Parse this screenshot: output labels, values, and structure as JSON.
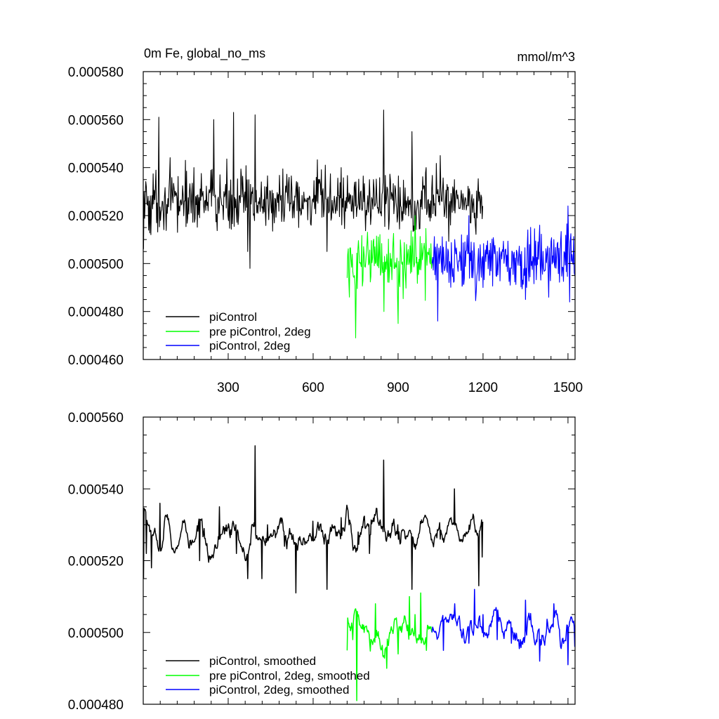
{
  "chart_data": [
    {
      "type": "line",
      "title": "0m Fe, global_no_ms",
      "units": "mmol/m^3",
      "xlim": [
        0,
        1525
      ],
      "ylim": [
        0.00046,
        0.00058
      ],
      "x_ticks": [
        "300",
        "600",
        "900",
        "1200",
        "1500"
      ],
      "y_ticks": [
        "0.000460",
        "0.000480",
        "0.000500",
        "0.000520",
        "0.000540",
        "0.000560",
        "0.000580"
      ],
      "legend_position": "bottom-left",
      "series": [
        {
          "name": "piControl",
          "color": "#000000",
          "x_range": [
            1,
            1200
          ],
          "baseline": 0.000526,
          "points": [
            [
              1,
              0.000506
            ],
            [
              14,
              0.000525
            ],
            [
              28,
              0.000512
            ],
            [
              55,
              0.000561
            ],
            [
              100,
              0.000527
            ],
            [
              180,
              0.00054
            ],
            [
              230,
              0.000522
            ],
            [
              250,
              0.00056
            ],
            [
              300,
              0.00052
            ],
            [
              320,
              0.000563
            ],
            [
              370,
              0.000505
            ],
            [
              378,
              0.000498
            ],
            [
              395,
              0.000562
            ],
            [
              450,
              0.00053
            ],
            [
              500,
              0.00052
            ],
            [
              550,
              0.000515
            ],
            [
              600,
              0.000527
            ],
            [
              650,
              0.000505
            ],
            [
              700,
              0.00054
            ],
            [
              760,
              0.000525
            ],
            [
              800,
              0.000535
            ],
            [
              850,
              0.000564
            ],
            [
              900,
              0.00052
            ],
            [
              950,
              0.000555
            ],
            [
              1000,
              0.00054
            ],
            [
              1050,
              0.000545
            ],
            [
              1100,
              0.000535
            ],
            [
              1150,
              0.000524
            ],
            [
              1180,
              0.000519
            ],
            [
              1200,
              0.000524
            ]
          ]
        },
        {
          "name": "pre piControl, 2deg",
          "color": "#00ff00",
          "x_range": [
            720,
            1020
          ],
          "baseline": 0.000501,
          "points": [
            [
              720,
              0.000494
            ],
            [
              728,
              0.000486
            ],
            [
              750,
              0.000469
            ],
            [
              780,
              0.000504
            ],
            [
              820,
              0.0005
            ],
            [
              850,
              0.00048
            ],
            [
              900,
              0.000475
            ],
            [
              930,
              0.000508
            ],
            [
              960,
              0.00052
            ],
            [
              990,
              0.000506
            ],
            [
              1020,
              0.0005
            ]
          ]
        },
        {
          "name": "piControl, 2deg",
          "color": "#0000ff",
          "x_range": [
            1020,
            1525
          ],
          "baseline": 0.000501,
          "points": [
            [
              1020,
              0.0005
            ],
            [
              1040,
              0.000476
            ],
            [
              1100,
              0.00051
            ],
            [
              1150,
              0.00052
            ],
            [
              1200,
              0.00049
            ],
            [
              1250,
              0.000505
            ],
            [
              1300,
              0.000498
            ],
            [
              1350,
              0.000485
            ],
            [
              1400,
              0.000516
            ],
            [
              1450,
              0.00051
            ],
            [
              1500,
              0.000524
            ],
            [
              1525,
              0.000495
            ]
          ]
        }
      ]
    },
    {
      "type": "line",
      "xlim": [
        0,
        1525
      ],
      "ylim": [
        0.00048,
        0.00056
      ],
      "y_ticks": [
        "0.000480",
        "0.000500",
        "0.000520",
        "0.000540",
        "0.000560"
      ],
      "legend_position": "bottom-left",
      "series": [
        {
          "name": "piControl, smoothed",
          "color": "#000000",
          "x_range": [
            1,
            1200
          ],
          "baseline": 0.000527,
          "points": [
            [
              1,
              0.000515
            ],
            [
              12,
              0.000522
            ],
            [
              30,
              0.000518
            ],
            [
              60,
              0.000536
            ],
            [
              150,
              0.00053
            ],
            [
              200,
              0.00052
            ],
            [
              270,
              0.000535
            ],
            [
              330,
              0.000522
            ],
            [
              370,
              0.000515
            ],
            [
              395,
              0.000552
            ],
            [
              420,
              0.000515
            ],
            [
              440,
              0.00053
            ],
            [
              500,
              0.000524
            ],
            [
              540,
              0.000511
            ],
            [
              600,
              0.000531
            ],
            [
              650,
              0.000512
            ],
            [
              700,
              0.000532
            ],
            [
              760,
              0.000528
            ],
            [
              800,
              0.000522
            ],
            [
              850,
              0.000548
            ],
            [
              900,
              0.00053
            ],
            [
              950,
              0.000512
            ],
            [
              1000,
              0.000532
            ],
            [
              1050,
              0.000526
            ],
            [
              1100,
              0.00054
            ],
            [
              1150,
              0.000528
            ],
            [
              1185,
              0.000513
            ],
            [
              1198,
              0.000521
            ]
          ]
        },
        {
          "name": "pre piControl, 2deg, smoothed",
          "color": "#00ff00",
          "x_range": [
            720,
            1020
          ],
          "baseline": 0.0005,
          "points": [
            [
              720,
              0.000495
            ],
            [
              740,
              0.000498
            ],
            [
              755,
              0.000481
            ],
            [
              780,
              0.0005
            ],
            [
              820,
              0.000508
            ],
            [
              860,
              0.00049
            ],
            [
              900,
              0.000494
            ],
            [
              940,
              0.00051
            ],
            [
              960,
              0.000505
            ],
            [
              980,
              0.000511
            ],
            [
              1000,
              0.000495
            ],
            [
              1020,
              0.0005
            ]
          ]
        },
        {
          "name": "piControl, 2deg, smoothed",
          "color": "#0000ff",
          "x_range": [
            1020,
            1525
          ],
          "baseline": 0.000501,
          "points": [
            [
              1020,
              0.0005
            ],
            [
              1060,
              0.000495
            ],
            [
              1100,
              0.000508
            ],
            [
              1150,
              0.000497
            ],
            [
              1170,
              0.000512
            ],
            [
              1200,
              0.000505
            ],
            [
              1250,
              0.000498
            ],
            [
              1300,
              0.000497
            ],
            [
              1350,
              0.000509
            ],
            [
              1400,
              0.000492
            ],
            [
              1450,
              0.000508
            ],
            [
              1500,
              0.000491
            ],
            [
              1525,
              0.000496
            ]
          ]
        }
      ]
    }
  ]
}
